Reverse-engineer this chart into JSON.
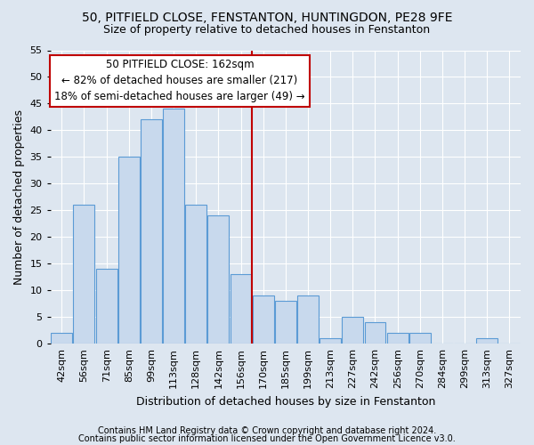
{
  "title1": "50, PITFIELD CLOSE, FENSTANTON, HUNTINGDON, PE28 9FE",
  "title2": "Size of property relative to detached houses in Fenstanton",
  "xlabel": "Distribution of detached houses by size in Fenstanton",
  "ylabel": "Number of detached properties",
  "categories": [
    "42sqm",
    "56sqm",
    "71sqm",
    "85sqm",
    "99sqm",
    "113sqm",
    "128sqm",
    "142sqm",
    "156sqm",
    "170sqm",
    "185sqm",
    "199sqm",
    "213sqm",
    "227sqm",
    "242sqm",
    "256sqm",
    "270sqm",
    "284sqm",
    "299sqm",
    "313sqm",
    "327sqm"
  ],
  "values": [
    2,
    26,
    14,
    35,
    42,
    44,
    26,
    24,
    13,
    9,
    8,
    9,
    1,
    5,
    4,
    2,
    2,
    0,
    0,
    1,
    0
  ],
  "bar_color": "#c8d9ed",
  "bar_edge_color": "#5b9bd5",
  "vline_color": "#c00000",
  "annotation_text": "50 PITFIELD CLOSE: 162sqm\n← 82% of detached houses are smaller (217)\n18% of semi-detached houses are larger (49) →",
  "annotation_box_color": "#ffffff",
  "annotation_box_edge": "#c00000",
  "ylim": [
    0,
    55
  ],
  "yticks": [
    0,
    5,
    10,
    15,
    20,
    25,
    30,
    35,
    40,
    45,
    50,
    55
  ],
  "footer1": "Contains HM Land Registry data © Crown copyright and database right 2024.",
  "footer2": "Contains public sector information licensed under the Open Government Licence v3.0.",
  "bg_color": "#dde6f0",
  "grid_color": "#ffffff",
  "title1_fontsize": 10,
  "title2_fontsize": 9,
  "tick_fontsize": 8,
  "ylabel_fontsize": 9,
  "xlabel_fontsize": 9,
  "footer_fontsize": 7,
  "annot_fontsize": 8.5
}
